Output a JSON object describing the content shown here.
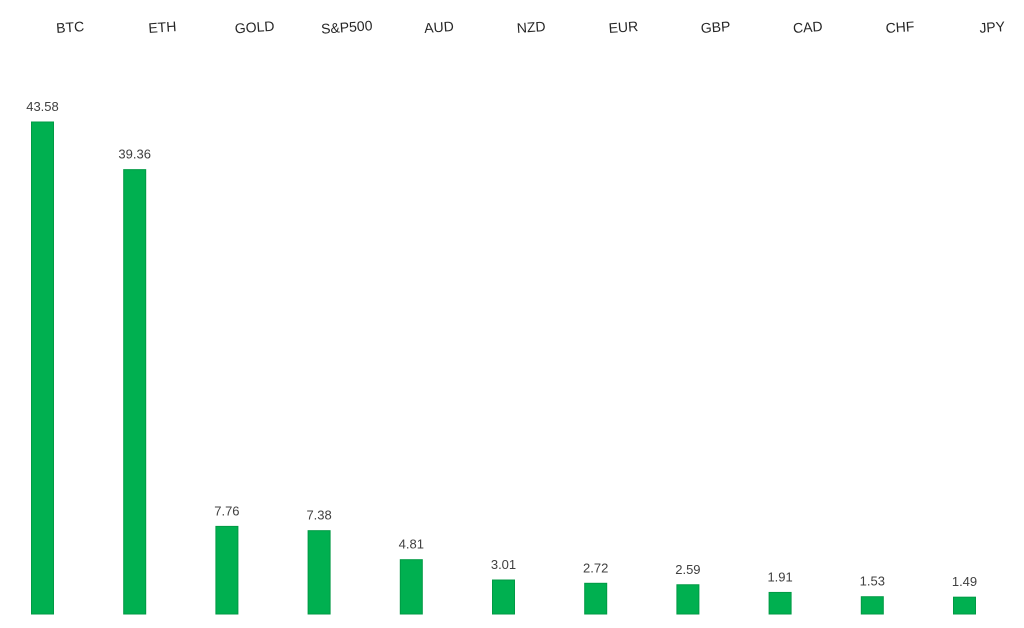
{
  "chart_data": {
    "type": "bar",
    "categories": [
      "BTC",
      "ETH",
      "GOLD",
      "S&P500",
      "AUD",
      "NZD",
      "EUR",
      "GBP",
      "CAD",
      "CHF",
      "JPY"
    ],
    "values": [
      43.58,
      39.36,
      7.76,
      7.38,
      4.81,
      3.01,
      2.72,
      2.59,
      1.91,
      1.53,
      1.49
    ],
    "value_labels": [
      "43.58",
      "39.36",
      "7.76",
      "7.38",
      "4.81",
      "3.01",
      "2.72",
      "2.59",
      "1.91",
      "1.53",
      "1.49"
    ],
    "bar_color": "#00b050",
    "bar_edge_color": "#009a44",
    "category_axis_position": "top",
    "data_labels": "above-bars",
    "grid": false,
    "legend": "none",
    "ylim": [
      0,
      43.58
    ]
  }
}
